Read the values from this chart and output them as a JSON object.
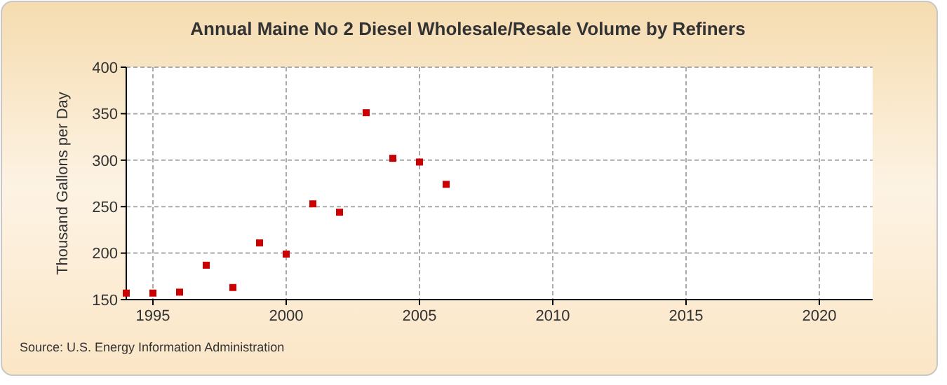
{
  "chart_data": {
    "type": "scatter",
    "title": "Annual Maine No 2 Diesel Wholesale/Resale Volume by Refiners",
    "ylabel": "Thousand Gallons per Day",
    "x": [
      1994,
      1995,
      1996,
      1997,
      1998,
      1999,
      2000,
      2001,
      2002,
      2003,
      2004,
      2005,
      2006
    ],
    "series": [
      {
        "color": "#cc0000",
        "values": [
          157,
          157,
          158,
          187,
          163,
          211,
          199,
          253,
          244,
          351,
          302,
          298,
          274
        ]
      }
    ],
    "xlim": [
      1994,
      2022
    ],
    "xticks": [
      1995,
      2000,
      2005,
      2010,
      2015,
      2020
    ],
    "ylim": [
      150,
      400
    ],
    "yticks": [
      150,
      200,
      250,
      300,
      350,
      400
    ],
    "grid": true,
    "marker": "square",
    "annotations": [
      "Source: U.S. Energy Information Administration"
    ]
  }
}
